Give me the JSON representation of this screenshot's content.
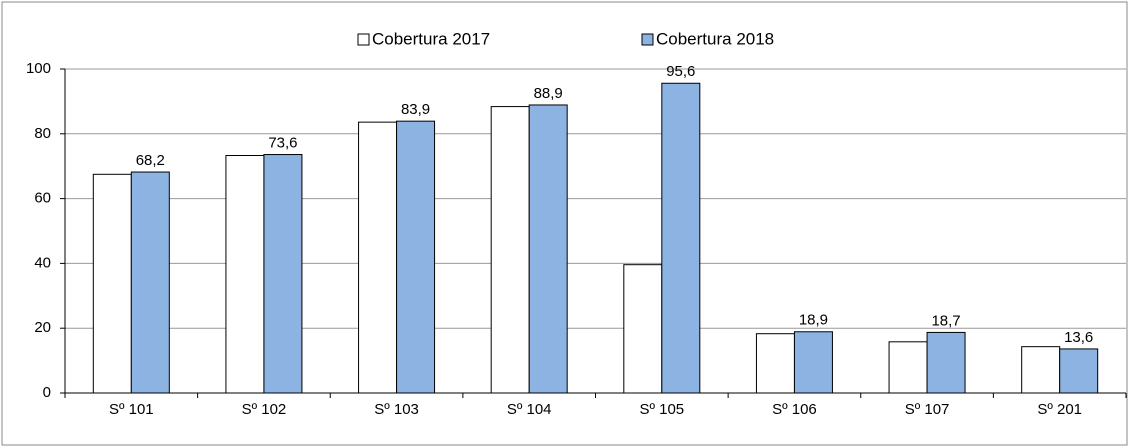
{
  "chart_data": {
    "type": "bar",
    "categories": [
      "Sº 101",
      "Sº 102",
      "Sº 103",
      "Sº 104",
      "Sº 105",
      "Sº 106",
      "Sº 107",
      "Sº 201"
    ],
    "series": [
      {
        "name": "Cobertura 2017",
        "color": "#ffffff",
        "values": [
          67.5,
          73.3,
          83.6,
          88.4,
          39.6,
          18.3,
          15.8,
          14.3
        ]
      },
      {
        "name": "Cobertura 2018",
        "color": "#8db3e2",
        "values": [
          68.2,
          73.6,
          83.9,
          88.9,
          95.6,
          18.9,
          18.7,
          13.6
        ],
        "value_labels": [
          "68,2",
          "73,6",
          "83,9",
          "88,9",
          "95,6",
          "18,9",
          "18,7",
          "13,6"
        ]
      }
    ],
    "ylim": [
      0,
      100
    ],
    "yticks": [
      0,
      20,
      40,
      60,
      80,
      100
    ],
    "grid": true,
    "legend": "top"
  }
}
